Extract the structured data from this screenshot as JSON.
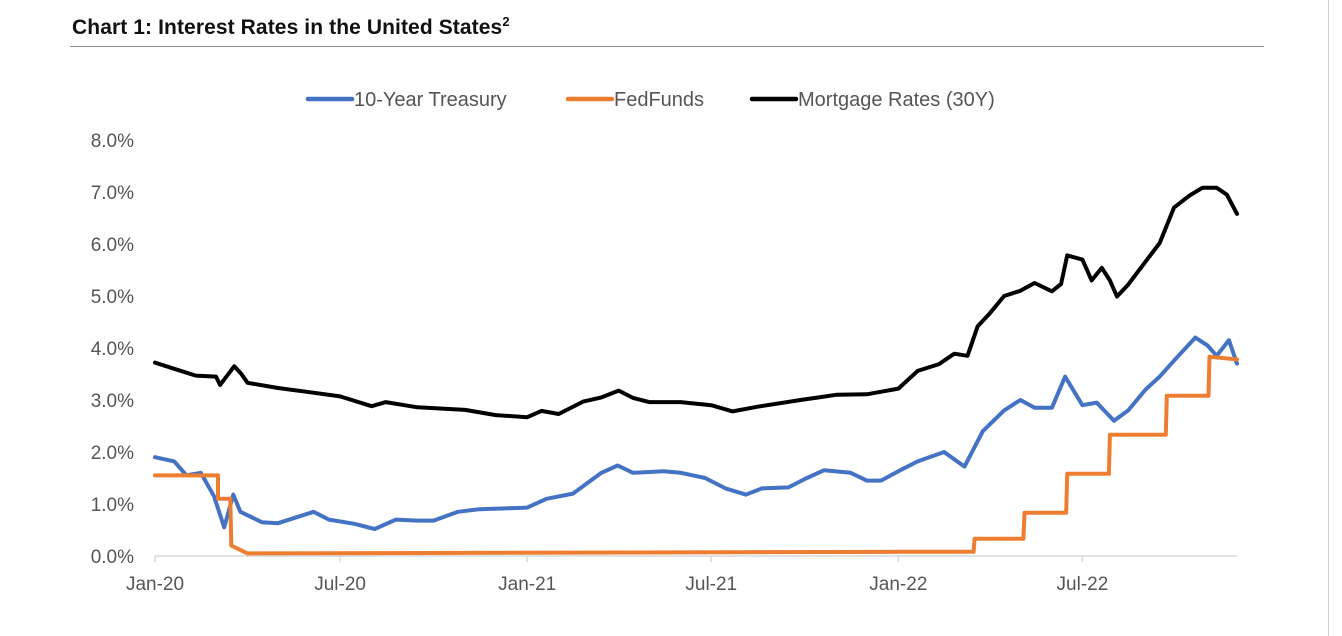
{
  "chart_data": {
    "type": "line",
    "title": "Chart 1: Interest Rates in the United States",
    "title_superscript": "2",
    "x_range": [
      "2020-01-01",
      "2022-11-30"
    ],
    "x_ticks": [
      {
        "date": "2020-01-01",
        "label": "Jan-20"
      },
      {
        "date": "2020-07-01",
        "label": "Jul-20"
      },
      {
        "date": "2021-01-01",
        "label": "Jan-21"
      },
      {
        "date": "2021-07-01",
        "label": "Jul-21"
      },
      {
        "date": "2022-01-01",
        "label": "Jan-22"
      },
      {
        "date": "2022-07-01",
        "label": "Jul-22"
      }
    ],
    "ylim": [
      0,
      8
    ],
    "y_ticks": [
      {
        "value": 0,
        "label": "0.0%"
      },
      {
        "value": 1,
        "label": "1.0%"
      },
      {
        "value": 2,
        "label": "2.0%"
      },
      {
        "value": 3,
        "label": "3.0%"
      },
      {
        "value": 4,
        "label": "4.0%"
      },
      {
        "value": 5,
        "label": "5.0%"
      },
      {
        "value": 6,
        "label": "6.0%"
      },
      {
        "value": 7,
        "label": "7.0%"
      },
      {
        "value": 8,
        "label": "8.0%"
      }
    ],
    "grid": false,
    "legend_position": "top",
    "series": [
      {
        "name": "10-Year Treasury",
        "color": "#4472C4",
        "points": [
          [
            "2020-01-01",
            1.9
          ],
          [
            "2020-01-20",
            1.82
          ],
          [
            "2020-02-01",
            1.55
          ],
          [
            "2020-02-15",
            1.6
          ],
          [
            "2020-02-28",
            1.15
          ],
          [
            "2020-03-09",
            0.55
          ],
          [
            "2020-03-18",
            1.18
          ],
          [
            "2020-03-25",
            0.85
          ],
          [
            "2020-04-15",
            0.65
          ],
          [
            "2020-05-01",
            0.63
          ],
          [
            "2020-06-05",
            0.85
          ],
          [
            "2020-06-20",
            0.7
          ],
          [
            "2020-07-15",
            0.62
          ],
          [
            "2020-08-04",
            0.52
          ],
          [
            "2020-08-25",
            0.7
          ],
          [
            "2020-09-15",
            0.68
          ],
          [
            "2020-10-01",
            0.68
          ],
          [
            "2020-10-25",
            0.85
          ],
          [
            "2020-11-15",
            0.9
          ],
          [
            "2020-12-15",
            0.92
          ],
          [
            "2021-01-01",
            0.93
          ],
          [
            "2021-01-20",
            1.1
          ],
          [
            "2021-02-15",
            1.2
          ],
          [
            "2021-03-15",
            1.6
          ],
          [
            "2021-03-31",
            1.74
          ],
          [
            "2021-04-15",
            1.6
          ],
          [
            "2021-05-15",
            1.63
          ],
          [
            "2021-06-01",
            1.6
          ],
          [
            "2021-06-25",
            1.5
          ],
          [
            "2021-07-15",
            1.3
          ],
          [
            "2021-08-04",
            1.18
          ],
          [
            "2021-08-20",
            1.3
          ],
          [
            "2021-09-15",
            1.32
          ],
          [
            "2021-10-01",
            1.48
          ],
          [
            "2021-10-20",
            1.65
          ],
          [
            "2021-11-15",
            1.6
          ],
          [
            "2021-12-01",
            1.45
          ],
          [
            "2021-12-15",
            1.45
          ],
          [
            "2022-01-01",
            1.63
          ],
          [
            "2022-01-20",
            1.82
          ],
          [
            "2022-02-15",
            2.0
          ],
          [
            "2022-03-07",
            1.72
          ],
          [
            "2022-03-25",
            2.4
          ],
          [
            "2022-04-15",
            2.8
          ],
          [
            "2022-05-01",
            3.0
          ],
          [
            "2022-05-15",
            2.85
          ],
          [
            "2022-06-01",
            2.85
          ],
          [
            "2022-06-14",
            3.45
          ],
          [
            "2022-07-01",
            2.9
          ],
          [
            "2022-07-15",
            2.95
          ],
          [
            "2022-08-01",
            2.6
          ],
          [
            "2022-08-15",
            2.8
          ],
          [
            "2022-09-01",
            3.2
          ],
          [
            "2022-09-15",
            3.45
          ],
          [
            "2022-10-01",
            3.8
          ],
          [
            "2022-10-20",
            4.2
          ],
          [
            "2022-11-01",
            4.05
          ],
          [
            "2022-11-10",
            3.85
          ],
          [
            "2022-11-22",
            4.15
          ],
          [
            "2022-11-30",
            3.7
          ]
        ]
      },
      {
        "name": "FedFunds",
        "color": "#ED7D31",
        "points": [
          [
            "2020-01-01",
            1.55
          ],
          [
            "2020-03-03",
            1.55
          ],
          [
            "2020-03-03",
            1.1
          ],
          [
            "2020-03-15",
            1.1
          ],
          [
            "2020-03-16",
            0.2
          ],
          [
            "2020-04-01",
            0.05
          ],
          [
            "2021-12-31",
            0.08
          ],
          [
            "2022-03-16",
            0.08
          ],
          [
            "2022-03-17",
            0.33
          ],
          [
            "2022-05-04",
            0.33
          ],
          [
            "2022-05-05",
            0.83
          ],
          [
            "2022-06-15",
            0.83
          ],
          [
            "2022-06-16",
            1.58
          ],
          [
            "2022-07-27",
            1.58
          ],
          [
            "2022-07-28",
            2.33
          ],
          [
            "2022-09-21",
            2.33
          ],
          [
            "2022-09-22",
            3.08
          ],
          [
            "2022-11-02",
            3.08
          ],
          [
            "2022-11-03",
            3.83
          ],
          [
            "2022-11-30",
            3.78
          ]
        ]
      },
      {
        "name": "Mortgage Rates (30Y)",
        "color": "#000000",
        "points": [
          [
            "2020-01-01",
            3.72
          ],
          [
            "2020-01-20",
            3.6
          ],
          [
            "2020-02-10",
            3.47
          ],
          [
            "2020-03-01",
            3.45
          ],
          [
            "2020-03-05",
            3.29
          ],
          [
            "2020-03-19",
            3.65
          ],
          [
            "2020-03-26",
            3.5
          ],
          [
            "2020-04-01",
            3.33
          ],
          [
            "2020-05-01",
            3.23
          ],
          [
            "2020-06-01",
            3.15
          ],
          [
            "2020-07-01",
            3.07
          ],
          [
            "2020-08-01",
            2.88
          ],
          [
            "2020-08-15",
            2.96
          ],
          [
            "2020-09-15",
            2.86
          ],
          [
            "2020-11-01",
            2.81
          ],
          [
            "2020-12-01",
            2.71
          ],
          [
            "2021-01-01",
            2.67
          ],
          [
            "2021-01-15",
            2.79
          ],
          [
            "2021-02-01",
            2.73
          ],
          [
            "2021-02-25",
            2.97
          ],
          [
            "2021-03-15",
            3.05
          ],
          [
            "2021-04-01",
            3.18
          ],
          [
            "2021-04-15",
            3.04
          ],
          [
            "2021-05-01",
            2.96
          ],
          [
            "2021-06-01",
            2.96
          ],
          [
            "2021-07-01",
            2.9
          ],
          [
            "2021-07-22",
            2.78
          ],
          [
            "2021-08-15",
            2.87
          ],
          [
            "2021-09-30",
            3.01
          ],
          [
            "2021-10-15",
            3.05
          ],
          [
            "2021-11-01",
            3.1
          ],
          [
            "2021-12-01",
            3.11
          ],
          [
            "2022-01-01",
            3.22
          ],
          [
            "2022-01-20",
            3.56
          ],
          [
            "2022-02-10",
            3.69
          ],
          [
            "2022-02-25",
            3.89
          ],
          [
            "2022-03-10",
            3.85
          ],
          [
            "2022-03-20",
            4.42
          ],
          [
            "2022-04-01",
            4.67
          ],
          [
            "2022-04-15",
            5.0
          ],
          [
            "2022-05-01",
            5.1
          ],
          [
            "2022-05-15",
            5.25
          ],
          [
            "2022-06-01",
            5.09
          ],
          [
            "2022-06-10",
            5.23
          ],
          [
            "2022-06-16",
            5.78
          ],
          [
            "2022-07-01",
            5.7
          ],
          [
            "2022-07-10",
            5.3
          ],
          [
            "2022-07-20",
            5.54
          ],
          [
            "2022-07-28",
            5.3
          ],
          [
            "2022-08-04",
            4.99
          ],
          [
            "2022-08-15",
            5.22
          ],
          [
            "2022-09-01",
            5.66
          ],
          [
            "2022-09-15",
            6.02
          ],
          [
            "2022-09-29",
            6.7
          ],
          [
            "2022-10-15",
            6.94
          ],
          [
            "2022-10-27",
            7.08
          ],
          [
            "2022-11-10",
            7.08
          ],
          [
            "2022-11-20",
            6.95
          ],
          [
            "2022-11-30",
            6.58
          ]
        ]
      }
    ]
  }
}
